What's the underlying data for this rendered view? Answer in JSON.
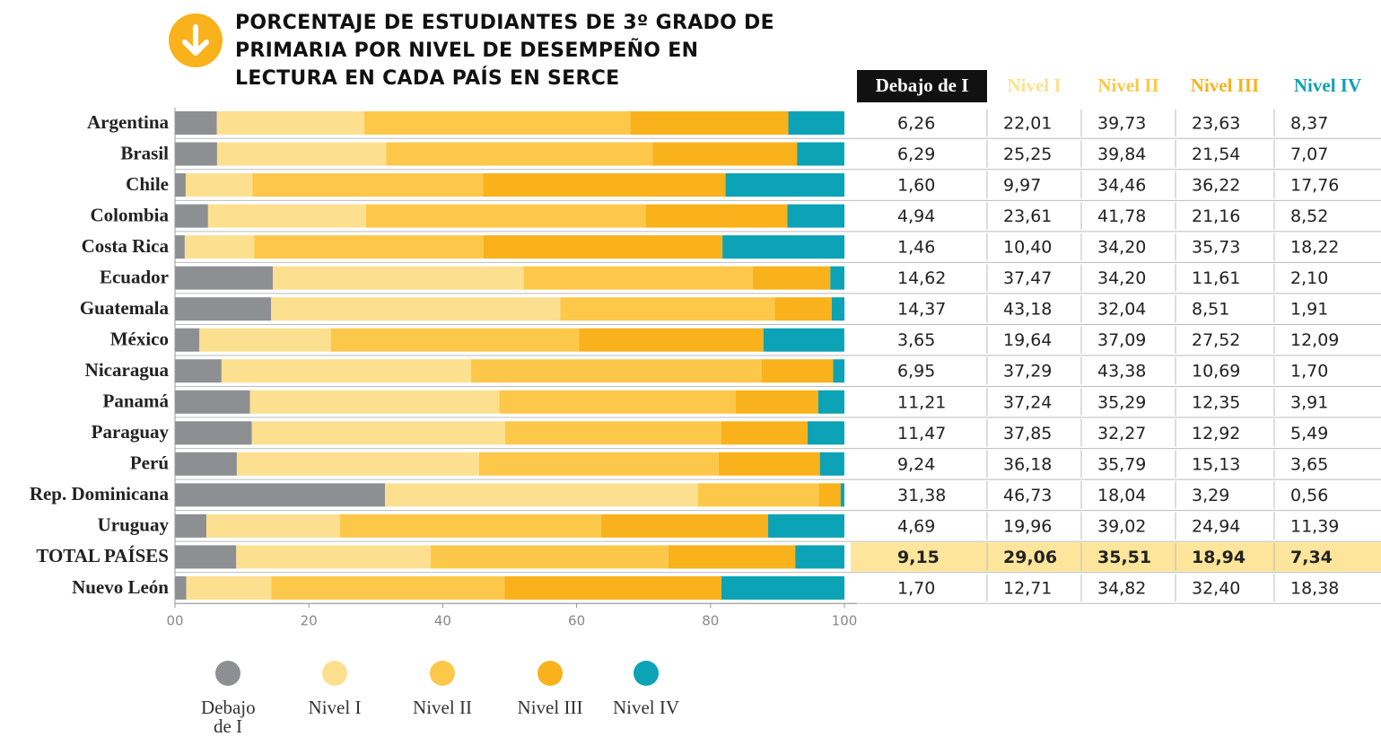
{
  "chart_data": {
    "type": "stacked-bar-horizontal",
    "title": "PORCENTAJE DE ESTUDIANTES DE 3º GRADO DE PRIMARIA POR NIVEL DE DESEMPEÑO EN LECTURA EN CADA PAÍS EN SERCE",
    "categories": [
      "Argentina",
      "Brasil",
      "Chile",
      "Colombia",
      "Costa Rica",
      "Ecuador",
      "Guatemala",
      "México",
      "Nicaragua",
      "Panamá",
      "Paraguay",
      "Perú",
      "Rep. Dominicana",
      "Uruguay",
      "TOTAL PAÍSES",
      "Nuevo León"
    ],
    "series": [
      {
        "name": "Debajo de I",
        "color": "#8e8f93",
        "header_color": "#ffffff",
        "values": [
          6.26,
          6.29,
          1.6,
          4.94,
          1.46,
          14.62,
          14.37,
          3.65,
          6.95,
          11.21,
          11.47,
          9.24,
          31.38,
          4.69,
          9.15,
          1.7
        ],
        "value_labels": [
          "6,26",
          "6,29",
          "1,60",
          "4,94",
          "1,46",
          "14,62",
          "14,37",
          "3,65",
          "6,95",
          "11,21",
          "11,47",
          "9,24",
          "31,38",
          "4,69",
          "9,15",
          "1,70"
        ]
      },
      {
        "name": "Nivel I",
        "color": "#fde08f",
        "header_color": "#fde08f",
        "values": [
          22.01,
          25.25,
          9.97,
          23.61,
          10.4,
          37.47,
          43.18,
          19.64,
          37.29,
          37.24,
          37.85,
          36.18,
          46.73,
          19.96,
          29.06,
          12.71
        ],
        "value_labels": [
          "22,01",
          "25,25",
          "9,97",
          "23,61",
          "10,40",
          "37,47",
          "43,18",
          "19,64",
          "37,29",
          "37,24",
          "37,85",
          "36,18",
          "46,73",
          "19,96",
          "29,06",
          "12,71"
        ]
      },
      {
        "name": "Nivel II",
        "color": "#fdc84a",
        "header_color": "#fdc84a",
        "values": [
          39.73,
          39.84,
          34.46,
          41.78,
          34.2,
          34.2,
          32.04,
          37.09,
          43.38,
          35.29,
          32.27,
          35.79,
          18.04,
          39.02,
          35.51,
          34.82
        ],
        "value_labels": [
          "39,73",
          "39,84",
          "34,46",
          "41,78",
          "34,20",
          "34,20",
          "32,04",
          "37,09",
          "43,38",
          "35,29",
          "32,27",
          "35,79",
          "18,04",
          "39,02",
          "35,51",
          "34,82"
        ]
      },
      {
        "name": "Nivel III",
        "color": "#f9b21b",
        "header_color": "#f9b21b",
        "values": [
          23.63,
          21.54,
          36.22,
          21.16,
          35.73,
          11.61,
          8.51,
          27.52,
          10.69,
          12.35,
          12.92,
          15.13,
          3.29,
          24.94,
          18.94,
          32.4
        ],
        "value_labels": [
          "23,63",
          "21,54",
          "36,22",
          "21,16",
          "35,73",
          "11,61",
          "8,51",
          "27,52",
          "10,69",
          "12,35",
          "12,92",
          "15,13",
          "3,29",
          "24,94",
          "18,94",
          "32,40"
        ]
      },
      {
        "name": "Nivel IV",
        "color": "#0ba3b5",
        "header_color": "#0ba3b5",
        "values": [
          8.37,
          7.07,
          17.76,
          8.52,
          18.22,
          2.1,
          1.91,
          12.09,
          1.7,
          3.91,
          5.49,
          3.65,
          0.56,
          11.39,
          7.34,
          18.38
        ],
        "value_labels": [
          "8,37",
          "7,07",
          "17,76",
          "8,52",
          "18,22",
          "2,10",
          "1,91",
          "12,09",
          "1,70",
          "3,91",
          "5,49",
          "3,65",
          "0,56",
          "11,39",
          "7,34",
          "18,38"
        ]
      }
    ],
    "xlim": [
      0,
      100
    ],
    "xticks": [
      {
        "value": 0,
        "label": "00"
      },
      20,
      40,
      60,
      80,
      100
    ]
  }
}
